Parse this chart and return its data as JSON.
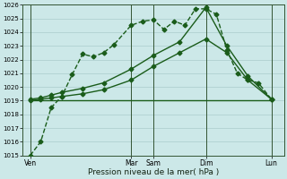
{
  "xlabel": "Pression niveau de la mer( hPa )",
  "background_color": "#cce8e8",
  "grid_color": "#aacccc",
  "line_color": "#1a5c1a",
  "ylim": [
    1015,
    1026
  ],
  "yticks": [
    1015,
    1016,
    1017,
    1018,
    1019,
    1020,
    1021,
    1022,
    1023,
    1024,
    1025,
    1026
  ],
  "xlim": [
    0,
    10
  ],
  "xtick_positions": [
    0.3,
    4.15,
    5.0,
    7.0,
    9.5
  ],
  "xtick_labels": [
    "Ven",
    "Mar",
    "Sam",
    "Dim",
    "Lun"
  ],
  "vline_positions": [
    0.3,
    4.15,
    5.0,
    7.0,
    9.5
  ],
  "series": [
    {
      "x": [
        0.3,
        0.7,
        1.1,
        1.5,
        1.9,
        2.3,
        2.7,
        3.1,
        3.5,
        4.15,
        4.6,
        5.0,
        5.4,
        5.8,
        6.2,
        6.6,
        7.0,
        7.4,
        7.8,
        8.2,
        8.6,
        9.0,
        9.5
      ],
      "y": [
        1015.0,
        1016.0,
        1018.5,
        1019.3,
        1020.9,
        1022.4,
        1022.2,
        1022.5,
        1023.1,
        1024.5,
        1024.8,
        1024.9,
        1024.2,
        1024.8,
        1024.5,
        1025.7,
        1025.7,
        1025.3,
        1022.7,
        1021.0,
        1020.5,
        1020.3,
        1019.1
      ],
      "marker": "D",
      "markersize": 2.5,
      "linestyle": "--",
      "linewidth": 1.0
    },
    {
      "x": [
        0.3,
        0.7,
        1.1,
        1.5,
        2.3,
        3.1,
        4.15,
        5.0,
        6.0,
        7.0,
        7.8,
        8.6,
        9.5
      ],
      "y": [
        1019.0,
        1019.1,
        1019.2,
        1019.3,
        1019.5,
        1019.8,
        1020.5,
        1021.5,
        1022.5,
        1023.5,
        1022.5,
        1020.5,
        1019.1
      ],
      "marker": "D",
      "markersize": 2.5,
      "linestyle": "-",
      "linewidth": 1.0
    },
    {
      "x": [
        0.3,
        0.7,
        1.1,
        1.5,
        2.3,
        3.1,
        4.15,
        5.0,
        6.0,
        7.0,
        7.8,
        8.6,
        9.5
      ],
      "y": [
        1019.1,
        1019.2,
        1019.4,
        1019.6,
        1019.9,
        1020.3,
        1021.3,
        1022.3,
        1023.3,
        1025.8,
        1023.0,
        1020.8,
        1019.1
      ],
      "marker": "D",
      "markersize": 2.5,
      "linestyle": "-",
      "linewidth": 1.0
    },
    {
      "x": [
        0.3,
        9.5
      ],
      "y": [
        1019.0,
        1019.0
      ],
      "marker": null,
      "markersize": 0,
      "linestyle": "-",
      "linewidth": 1.0
    }
  ]
}
